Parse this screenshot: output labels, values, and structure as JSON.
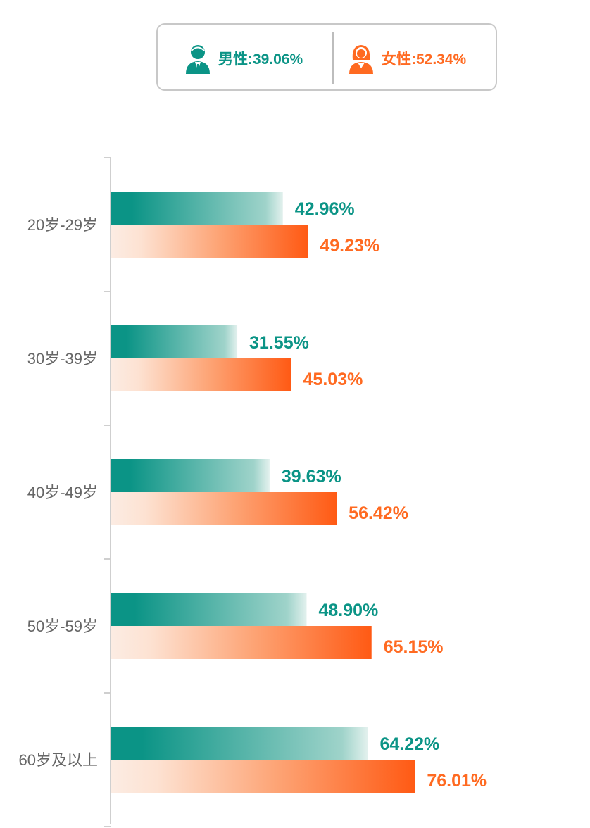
{
  "legend": {
    "male": {
      "label": "男性:39.06%",
      "color": "#0b9486",
      "icon": "male-user-icon"
    },
    "female": {
      "label": "女性:52.34%",
      "color": "#ff6a21",
      "icon": "female-user-icon"
    }
  },
  "chart_data": {
    "type": "bar",
    "orientation": "horizontal",
    "categories": [
      "20岁-29岁",
      "30岁-39岁",
      "40岁-49岁",
      "50岁-59岁",
      "60岁及以上"
    ],
    "series": [
      {
        "name": "男性",
        "values": [
          42.96,
          31.55,
          39.63,
          48.9,
          64.22
        ],
        "labels": [
          "42.96%",
          "31.55%",
          "39.63%",
          "48.90%",
          "64.22%"
        ],
        "color": "#0b9486"
      },
      {
        "name": "女性",
        "values": [
          49.23,
          45.03,
          56.42,
          65.15,
          76.01
        ],
        "labels": [
          "49.23%",
          "45.03%",
          "56.42%",
          "65.15%",
          "76.01%"
        ],
        "color": "#ff6a21"
      }
    ],
    "xlim": [
      0,
      100
    ],
    "grid": false,
    "legend_position": "top"
  }
}
